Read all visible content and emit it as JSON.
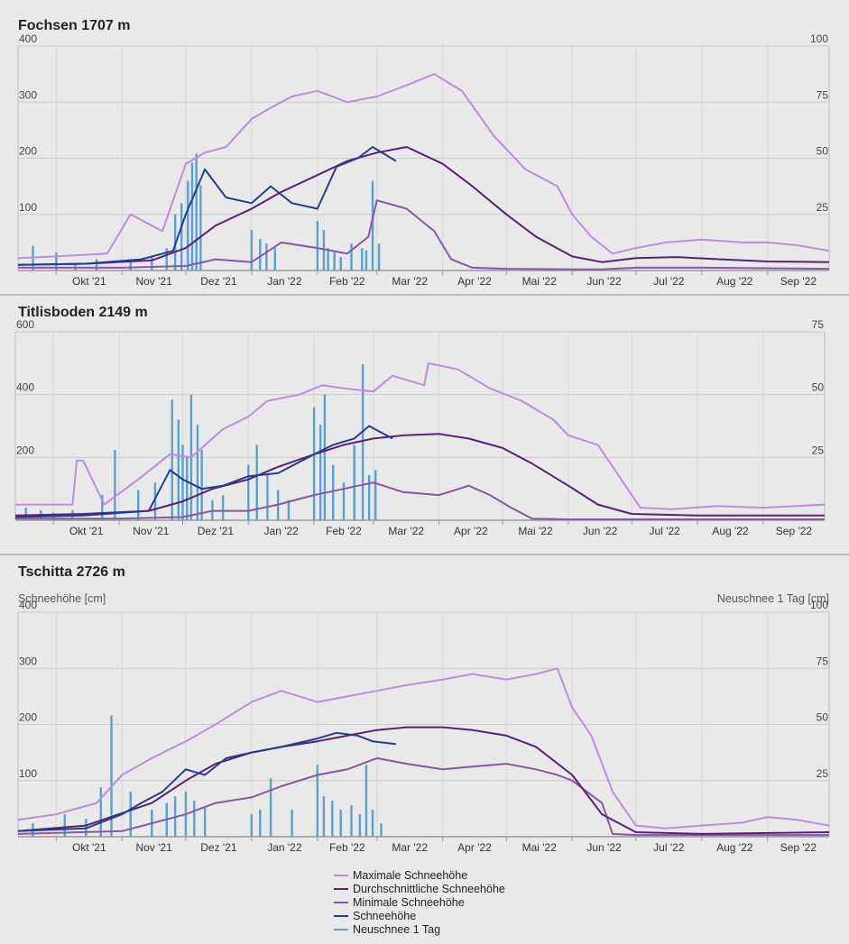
{
  "colors": {
    "max": "#c389e0",
    "avg": "#5b1f78",
    "min": "#8b55a8",
    "snow": "#1f3f8f",
    "new": "#5b9fd0",
    "grid": "#c9c9c9",
    "axisline": "#9a9a9a"
  },
  "legend": [
    {
      "key": "max",
      "label": "Maximale Schneehöhe"
    },
    {
      "key": "avg",
      "label": "Durchschnittliche Schneehöhe"
    },
    {
      "key": "min",
      "label": "Minimale Schneehöhe"
    },
    {
      "key": "snow",
      "label": "Schneehöhe"
    },
    {
      "key": "new",
      "label": "Neuschnee 1 Tag"
    }
  ],
  "chart_data": [
    {
      "title": "Fochsen 1707 m",
      "type": "line",
      "ylabel": "",
      "ylabel_right": "",
      "ylim": [
        0,
        400
      ],
      "y_ticks": [
        100,
        200,
        300,
        400
      ],
      "y2lim": [
        0,
        100
      ],
      "y2_ticks": [
        25,
        50,
        75,
        100
      ],
      "x_ticks": [
        "Okt '21",
        "Nov '21",
        "Dez '21",
        "Jan '22",
        "Feb '22",
        "Mar '22",
        "Apr '22",
        "Mai '22",
        "Jun '22",
        "Jul '22",
        "Aug '22",
        "Sep '22"
      ],
      "x_range": [
        "2021-09-13",
        "2022-09-30"
      ],
      "series": [
        {
          "key": "max",
          "name": "Maximale Schneehöhe",
          "type": "line",
          "x": [
            "2021-09-13",
            "2021-10-01",
            "2021-10-25",
            "2021-11-05",
            "2021-11-20",
            "2021-12-01",
            "2021-12-10",
            "2021-12-20",
            "2022-01-01",
            "2022-01-10",
            "2022-01-20",
            "2022-02-01",
            "2022-02-15",
            "2022-03-01",
            "2022-03-15",
            "2022-03-28",
            "2022-04-10",
            "2022-04-25",
            "2022-05-10",
            "2022-05-25",
            "2022-06-01",
            "2022-06-10",
            "2022-06-20",
            "2022-07-01",
            "2022-07-15",
            "2022-08-01",
            "2022-08-20",
            "2022-09-01",
            "2022-09-15",
            "2022-09-30"
          ],
          "values": [
            22,
            25,
            30,
            100,
            70,
            190,
            210,
            220,
            270,
            290,
            310,
            320,
            300,
            310,
            330,
            350,
            320,
            240,
            180,
            150,
            100,
            60,
            30,
            40,
            50,
            55,
            50,
            50,
            45,
            35
          ]
        },
        {
          "key": "avg",
          "name": "Durchschnittliche Schneehöhe",
          "type": "line",
          "x": [
            "2021-09-13",
            "2021-10-15",
            "2021-11-15",
            "2021-12-01",
            "2021-12-15",
            "2022-01-01",
            "2022-01-15",
            "2022-02-01",
            "2022-02-15",
            "2022-03-01",
            "2022-03-15",
            "2022-04-01",
            "2022-04-15",
            "2022-05-01",
            "2022-05-15",
            "2022-06-01",
            "2022-06-15",
            "2022-07-01",
            "2022-07-20",
            "2022-08-10",
            "2022-09-01",
            "2022-09-30"
          ],
          "values": [
            10,
            12,
            18,
            40,
            80,
            110,
            140,
            170,
            195,
            210,
            220,
            190,
            150,
            100,
            60,
            25,
            15,
            22,
            24,
            20,
            16,
            15
          ]
        },
        {
          "key": "min",
          "name": "Minimale Schneehöhe",
          "type": "line",
          "x": [
            "2021-09-13",
            "2021-11-01",
            "2021-12-01",
            "2021-12-15",
            "2022-01-01",
            "2022-01-15",
            "2022-02-01",
            "2022-02-15",
            "2022-02-25",
            "2022-03-01",
            "2022-03-15",
            "2022-03-28",
            "2022-04-05",
            "2022-04-15",
            "2022-05-01",
            "2022-06-01",
            "2022-06-15",
            "2022-07-01",
            "2022-08-01",
            "2022-09-30"
          ],
          "values": [
            5,
            5,
            8,
            20,
            15,
            50,
            40,
            30,
            60,
            125,
            110,
            70,
            20,
            5,
            3,
            2,
            2,
            5,
            5,
            3
          ]
        },
        {
          "key": "snow",
          "name": "Schneehöhe",
          "type": "line",
          "x": [
            "2021-09-13",
            "2021-10-15",
            "2021-11-10",
            "2021-11-25",
            "2021-12-01",
            "2021-12-10",
            "2021-12-20",
            "2022-01-01",
            "2022-01-10",
            "2022-01-20",
            "2022-02-01",
            "2022-02-10",
            "2022-02-20",
            "2022-02-27",
            "2022-03-10"
          ],
          "values": [
            10,
            12,
            20,
            35,
            100,
            180,
            130,
            120,
            150,
            120,
            110,
            185,
            200,
            220,
            195
          ]
        },
        {
          "key": "new",
          "name": "Neuschnee 1 Tag",
          "type": "bar",
          "axis": "right",
          "x": [
            "2021-09-20",
            "2021-10-01",
            "2021-10-10",
            "2021-10-20",
            "2021-11-05",
            "2021-11-15",
            "2021-11-22",
            "2021-11-26",
            "2021-11-29",
            "2021-12-02",
            "2021-12-04",
            "2021-12-06",
            "2021-12-08",
            "2022-01-01",
            "2022-01-05",
            "2022-01-08",
            "2022-01-12",
            "2022-02-01",
            "2022-02-04",
            "2022-02-06",
            "2022-02-09",
            "2022-02-12",
            "2022-02-17",
            "2022-02-22",
            "2022-02-24",
            "2022-02-27",
            "2022-03-02"
          ],
          "values": [
            11,
            8,
            3,
            5,
            4,
            6,
            10,
            25,
            30,
            40,
            48,
            52,
            38,
            18,
            14,
            12,
            10,
            22,
            18,
            10,
            8,
            6,
            12,
            10,
            9,
            40,
            12
          ]
        }
      ]
    },
    {
      "title": "Titlisboden 2149 m",
      "type": "line",
      "ylabel": "",
      "ylabel_right": "",
      "ylim": [
        0,
        600
      ],
      "y_ticks": [
        200,
        400,
        600
      ],
      "y2lim": [
        0,
        75
      ],
      "y2_ticks": [
        25,
        50,
        75
      ],
      "x_ticks": [
        "Okt '21",
        "Nov '21",
        "Dez '21",
        "Jan '22",
        "Feb '22",
        "Mar '22",
        "Apr '22",
        "Mai '22",
        "Jun '22",
        "Jul '22",
        "Aug '22",
        "Sep '22"
      ],
      "x_range": [
        "2021-09-13",
        "2022-09-30"
      ],
      "series": [
        {
          "key": "max",
          "name": "Maximale Schneehöhe",
          "type": "line",
          "x": [
            "2021-09-13",
            "2021-10-10",
            "2021-10-12",
            "2021-10-15",
            "2021-10-25",
            "2021-11-10",
            "2021-11-25",
            "2021-12-05",
            "2021-12-20",
            "2022-01-01",
            "2022-01-10",
            "2022-01-25",
            "2022-02-05",
            "2022-02-15",
            "2022-03-01",
            "2022-03-10",
            "2022-03-25",
            "2022-03-27",
            "2022-04-10",
            "2022-04-25",
            "2022-05-10",
            "2022-05-25",
            "2022-06-01",
            "2022-06-15",
            "2022-06-25",
            "2022-07-05",
            "2022-07-20",
            "2022-08-10",
            "2022-09-01",
            "2022-09-30"
          ],
          "values": [
            50,
            50,
            190,
            190,
            50,
            130,
            210,
            200,
            290,
            330,
            380,
            400,
            430,
            420,
            410,
            460,
            430,
            500,
            480,
            420,
            380,
            320,
            270,
            240,
            140,
            40,
            35,
            45,
            40,
            50
          ]
        },
        {
          "key": "avg",
          "name": "Durchschnittliche Schneehöhe",
          "type": "line",
          "x": [
            "2021-09-13",
            "2021-10-15",
            "2021-11-15",
            "2021-12-01",
            "2021-12-15",
            "2022-01-01",
            "2022-01-15",
            "2022-02-01",
            "2022-02-15",
            "2022-03-01",
            "2022-03-15",
            "2022-04-01",
            "2022-04-15",
            "2022-05-01",
            "2022-05-15",
            "2022-06-01",
            "2022-06-15",
            "2022-07-01",
            "2022-08-01",
            "2022-09-30"
          ],
          "values": [
            15,
            20,
            30,
            60,
            100,
            130,
            170,
            210,
            240,
            260,
            270,
            275,
            260,
            230,
            180,
            110,
            50,
            20,
            15,
            15
          ]
        },
        {
          "key": "min",
          "name": "Minimale Schneehöhe",
          "type": "line",
          "x": [
            "2021-09-13",
            "2021-11-01",
            "2021-12-01",
            "2021-12-15",
            "2022-01-01",
            "2022-01-15",
            "2022-02-01",
            "2022-02-15",
            "2022-03-01",
            "2022-03-15",
            "2022-04-01",
            "2022-04-15",
            "2022-04-25",
            "2022-05-05",
            "2022-05-15",
            "2022-06-01",
            "2022-07-01",
            "2022-09-30"
          ],
          "values": [
            5,
            5,
            10,
            30,
            30,
            50,
            80,
            100,
            120,
            90,
            80,
            110,
            80,
            40,
            5,
            3,
            3,
            3
          ]
        },
        {
          "key": "snow",
          "name": "Schneehöhe",
          "type": "line",
          "x": [
            "2021-09-13",
            "2021-10-15",
            "2021-11-15",
            "2021-11-25",
            "2021-12-01",
            "2021-12-10",
            "2021-12-20",
            "2022-01-01",
            "2022-01-15",
            "2022-02-01",
            "2022-02-10",
            "2022-02-20",
            "2022-02-27",
            "2022-03-10"
          ],
          "values": [
            10,
            15,
            30,
            160,
            130,
            100,
            110,
            140,
            150,
            210,
            240,
            260,
            300,
            260
          ]
        },
        {
          "key": "new",
          "name": "Neuschnee 1 Tag",
          "type": "bar",
          "axis": "right",
          "x": [
            "2021-09-18",
            "2021-09-25",
            "2021-10-01",
            "2021-10-10",
            "2021-10-24",
            "2021-10-30",
            "2021-11-10",
            "2021-11-18",
            "2021-11-26",
            "2021-11-29",
            "2021-12-01",
            "2021-12-03",
            "2021-12-05",
            "2021-12-08",
            "2021-12-10",
            "2021-12-15",
            "2021-12-20",
            "2022-01-01",
            "2022-01-05",
            "2022-01-10",
            "2022-01-15",
            "2022-01-20",
            "2022-02-01",
            "2022-02-04",
            "2022-02-06",
            "2022-02-10",
            "2022-02-15",
            "2022-02-20",
            "2022-02-24",
            "2022-02-27",
            "2022-03-02"
          ],
          "values": [
            5,
            4,
            3,
            4,
            10,
            28,
            12,
            15,
            48,
            40,
            30,
            25,
            50,
            38,
            28,
            8,
            10,
            22,
            30,
            18,
            12,
            8,
            45,
            38,
            50,
            22,
            15,
            30,
            62,
            18,
            20
          ]
        }
      ]
    },
    {
      "title": "Tschitta 2726 m",
      "type": "line",
      "ylabel": "Schneehöhe [cm]",
      "ylabel_right": "Neuschnee 1 Tag [cm]",
      "ylim": [
        0,
        400
      ],
      "y_ticks": [
        100,
        200,
        300,
        400
      ],
      "y2lim": [
        0,
        100
      ],
      "y2_ticks": [
        25,
        50,
        75,
        100
      ],
      "x_ticks": [
        "Okt '21",
        "Nov '21",
        "Dez '21",
        "Jan '22",
        "Feb '22",
        "Mar '22",
        "Apr '22",
        "Mai '22",
        "Jun '22",
        "Jul '22",
        "Aug '22",
        "Sep '22"
      ],
      "x_range": [
        "2021-09-13",
        "2022-09-30"
      ],
      "series": [
        {
          "key": "max",
          "name": "Maximale Schneehöhe",
          "type": "line",
          "x": [
            "2021-09-13",
            "2021-10-01",
            "2021-10-20",
            "2021-11-01",
            "2021-11-15",
            "2021-12-01",
            "2021-12-15",
            "2022-01-01",
            "2022-01-15",
            "2022-02-01",
            "2022-02-15",
            "2022-03-01",
            "2022-03-15",
            "2022-04-01",
            "2022-04-15",
            "2022-05-01",
            "2022-05-15",
            "2022-05-25",
            "2022-06-01",
            "2022-06-10",
            "2022-06-20",
            "2022-07-01",
            "2022-07-15",
            "2022-08-01",
            "2022-08-20",
            "2022-09-01",
            "2022-09-15",
            "2022-09-30"
          ],
          "values": [
            30,
            40,
            60,
            110,
            140,
            170,
            200,
            240,
            260,
            240,
            250,
            260,
            270,
            280,
            290,
            280,
            290,
            300,
            230,
            180,
            80,
            20,
            15,
            20,
            25,
            35,
            30,
            20
          ]
        },
        {
          "key": "avg",
          "name": "Durchschnittliche Schneehöhe",
          "type": "line",
          "x": [
            "2021-09-13",
            "2021-10-15",
            "2021-11-15",
            "2021-12-01",
            "2021-12-15",
            "2022-01-01",
            "2022-01-15",
            "2022-02-01",
            "2022-02-15",
            "2022-03-01",
            "2022-03-15",
            "2022-04-01",
            "2022-04-15",
            "2022-05-01",
            "2022-05-15",
            "2022-06-01",
            "2022-06-15",
            "2022-07-01",
            "2022-08-01",
            "2022-09-30"
          ],
          "values": [
            10,
            20,
            60,
            100,
            130,
            150,
            160,
            170,
            180,
            190,
            195,
            195,
            190,
            180,
            160,
            110,
            40,
            8,
            5,
            8
          ]
        },
        {
          "key": "min",
          "name": "Minimale Schneehöhe",
          "type": "line",
          "x": [
            "2021-09-13",
            "2021-11-01",
            "2021-12-01",
            "2021-12-15",
            "2022-01-01",
            "2022-01-15",
            "2022-02-01",
            "2022-02-15",
            "2022-03-01",
            "2022-03-15",
            "2022-04-01",
            "2022-04-15",
            "2022-05-01",
            "2022-05-15",
            "2022-05-25",
            "2022-06-01",
            "2022-06-15",
            "2022-06-20",
            "2022-07-01",
            "2022-09-30"
          ],
          "values": [
            5,
            10,
            40,
            60,
            70,
            90,
            110,
            120,
            140,
            130,
            120,
            125,
            130,
            120,
            110,
            100,
            60,
            5,
            3,
            3
          ]
        },
        {
          "key": "snow",
          "name": "Schneehöhe",
          "type": "line",
          "x": [
            "2021-09-13",
            "2021-10-15",
            "2021-11-01",
            "2021-11-10",
            "2021-11-20",
            "2021-12-01",
            "2021-12-10",
            "2021-12-20",
            "2022-01-01",
            "2022-01-15",
            "2022-02-01",
            "2022-02-10",
            "2022-02-20",
            "2022-02-27",
            "2022-03-10"
          ],
          "values": [
            10,
            15,
            40,
            60,
            80,
            120,
            110,
            140,
            150,
            160,
            175,
            185,
            180,
            170,
            165
          ]
        },
        {
          "key": "new",
          "name": "Neuschnee 1 Tag",
          "type": "bar",
          "axis": "right",
          "x": [
            "2021-09-20",
            "2021-10-05",
            "2021-10-15",
            "2021-10-22",
            "2021-10-27",
            "2021-11-05",
            "2021-11-15",
            "2021-11-22",
            "2021-11-26",
            "2021-12-01",
            "2021-12-05",
            "2021-12-10",
            "2022-01-01",
            "2022-01-05",
            "2022-01-10",
            "2022-01-20",
            "2022-02-01",
            "2022-02-04",
            "2022-02-08",
            "2022-02-12",
            "2022-02-17",
            "2022-02-21",
            "2022-02-24",
            "2022-02-27",
            "2022-03-03"
          ],
          "values": [
            6,
            10,
            8,
            22,
            54,
            20,
            12,
            15,
            18,
            20,
            16,
            13,
            10,
            12,
            26,
            12,
            32,
            18,
            16,
            12,
            14,
            10,
            32,
            12,
            6
          ]
        }
      ]
    }
  ]
}
